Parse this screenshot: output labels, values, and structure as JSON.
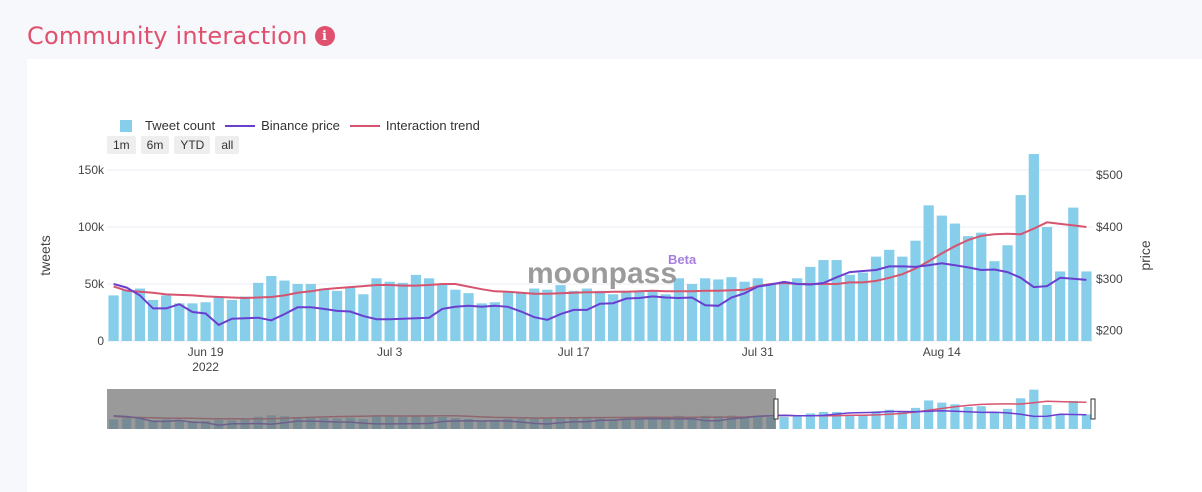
{
  "header": {
    "title": "Community interaction",
    "info_icon": "info-icon"
  },
  "legend": [
    {
      "label": "Tweet count",
      "color": "#87ceeb",
      "kind": "bar"
    },
    {
      "label": "Binance price",
      "color": "#6a3fd0",
      "kind": "line"
    },
    {
      "label": "Interaction trend",
      "color": "#d6546f",
      "kind": "line"
    }
  ],
  "range_buttons": [
    "1m",
    "6m",
    "YTD",
    "all"
  ],
  "watermark": {
    "text": "moonpass",
    "badge": "Beta"
  },
  "chart_data": {
    "type": "bar",
    "x_start": "2022-06-12",
    "x_end": "2022-08-29",
    "x_ticks": [
      {
        "date": "2022-06-19",
        "label": "Jun 19",
        "sub": "2022"
      },
      {
        "date": "2022-07-03",
        "label": "Jul 3",
        "sub": ""
      },
      {
        "date": "2022-07-17",
        "label": "Jul 17",
        "sub": ""
      },
      {
        "date": "2022-07-31",
        "label": "Jul 31",
        "sub": ""
      },
      {
        "date": "2022-08-14",
        "label": "Aug 14",
        "sub": ""
      }
    ],
    "y_left": {
      "label": "tweets",
      "range": [
        0,
        150000
      ],
      "ticks": [
        0,
        50000,
        100000,
        150000
      ],
      "tick_labels": [
        "0",
        "50k",
        "100k",
        "150k"
      ]
    },
    "y_right": {
      "label": "price",
      "range": [
        180,
        510
      ],
      "ticks": [
        200,
        300,
        400,
        500
      ],
      "tick_labels": [
        "$200",
        "$300",
        "$400",
        "$500"
      ]
    },
    "grid": true,
    "legend_position": "top-left",
    "series": [
      {
        "name": "Tweet count",
        "type": "bar",
        "axis": "left",
        "color": "#87ceeb",
        "values": [
          40000,
          45000,
          46000,
          36000,
          40000,
          33000,
          33000,
          34000,
          38000,
          36000,
          39000,
          51000,
          57000,
          53000,
          50000,
          50000,
          46000,
          44000,
          47000,
          41000,
          55000,
          52000,
          51000,
          58000,
          55000,
          50000,
          45000,
          42000,
          33000,
          34000,
          43000,
          43000,
          46000,
          45000,
          49000,
          44000,
          46000,
          44000,
          41000,
          44000,
          44000,
          44000,
          41000,
          55000,
          50000,
          55000,
          54000,
          56000,
          52000,
          55000,
          50000,
          51000,
          55000,
          65000,
          71000,
          71000,
          58000,
          60000,
          74000,
          80000,
          74000,
          88000,
          119000,
          110000,
          103000,
          92000,
          95000,
          70000,
          84000,
          128000,
          164000,
          100000,
          61000,
          117000,
          61000
        ]
      },
      {
        "name": "Binance price",
        "type": "line",
        "axis": "right",
        "color": "#6a3fd0",
        "values": [
          290,
          283,
          268,
          243,
          243,
          251,
          236,
          233,
          211,
          223,
          224,
          225,
          220,
          232,
          245,
          245,
          242,
          238,
          237,
          228,
          222,
          222,
          223,
          224,
          225,
          242,
          246,
          248,
          246,
          248,
          246,
          237,
          226,
          221,
          232,
          240,
          240,
          252,
          253,
          262,
          263,
          266,
          264,
          263,
          264,
          249,
          248,
          264,
          272,
          285,
          289,
          294,
          290,
          289,
          292,
          303,
          313,
          315,
          317,
          324,
          324,
          323,
          326,
          330,
          326,
          322,
          317,
          318,
          313,
          302,
          284,
          286,
          302,
          300,
          298
        ]
      },
      {
        "name": "Interaction trend",
        "type": "line",
        "axis": "right",
        "color": "#d6546f",
        "values": [
          285,
          277,
          275,
          273,
          270,
          269,
          268,
          266,
          265,
          264,
          263,
          264,
          265,
          268,
          273,
          276,
          280,
          282,
          284,
          286,
          288,
          288,
          287,
          287,
          288,
          290,
          290,
          285,
          280,
          276,
          275,
          273,
          271,
          271,
          272,
          273,
          274,
          274,
          275,
          275,
          276,
          277,
          276,
          276,
          276,
          277,
          277,
          278,
          279,
          286,
          290,
          292,
          290,
          290,
          290,
          290,
          293,
          293,
          296,
          302,
          309,
          320,
          334,
          349,
          363,
          375,
          383,
          386,
          387,
          386,
          397,
          409,
          406,
          403,
          400
        ]
      }
    ]
  }
}
